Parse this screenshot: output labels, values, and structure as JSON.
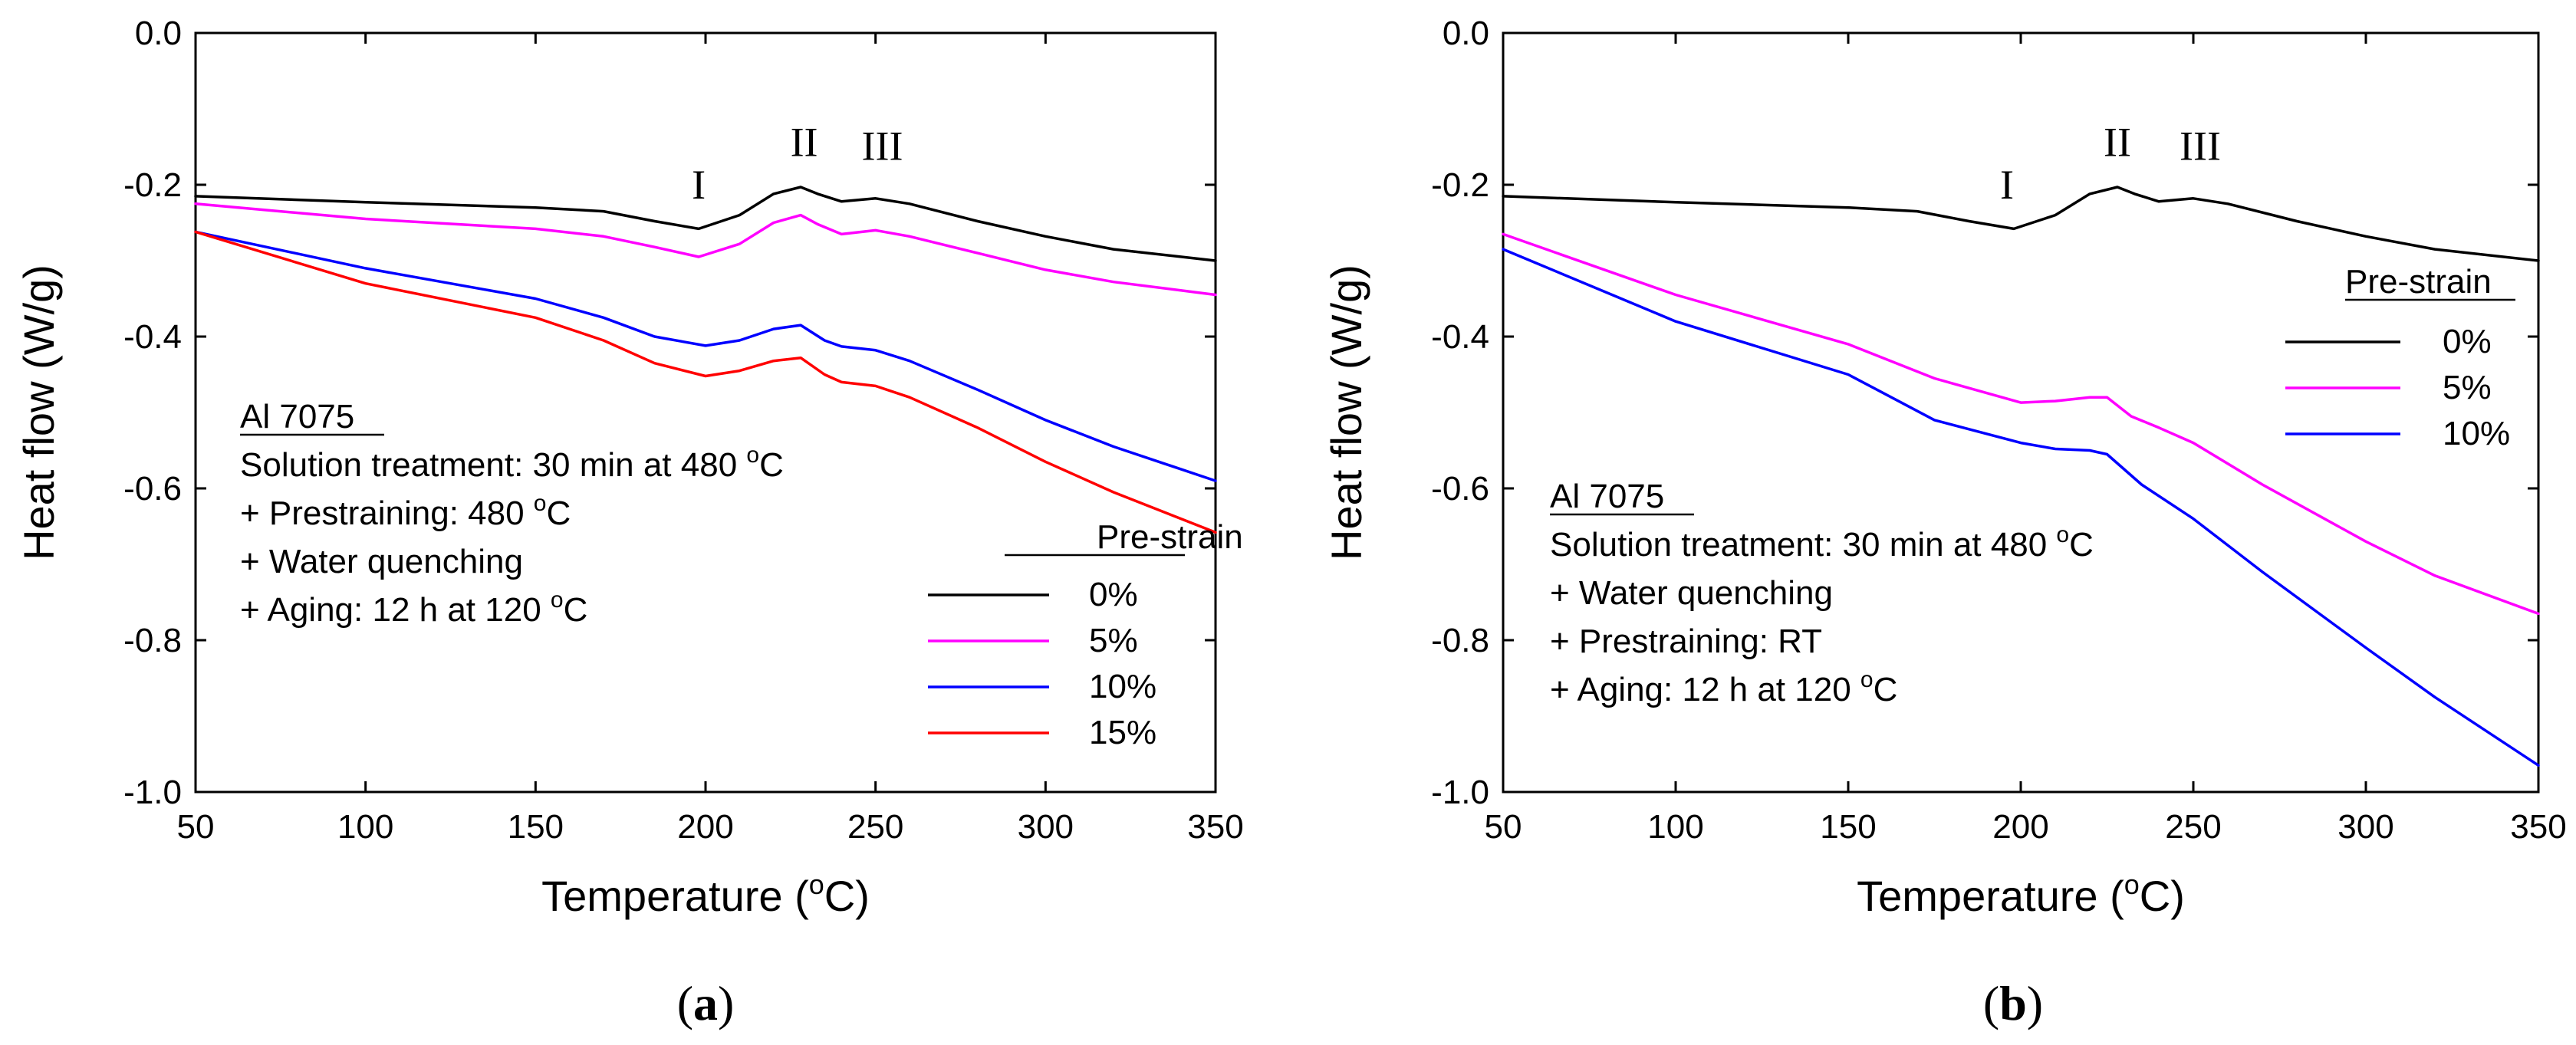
{
  "chart_data": [
    {
      "type": "line",
      "panel_label": "a",
      "xlabel": "Temperature (",
      "xlabel_sup": "o",
      "xlabel_end": "C)",
      "ylabel": "Heat flow (W/g)",
      "xlim": [
        50,
        350
      ],
      "ylim": [
        -1.0,
        0.0
      ],
      "xticks": [
        "50",
        "100",
        "150",
        "200",
        "250",
        "300",
        "350"
      ],
      "yticks": [
        "0.0",
        "-0.2",
        "-0.4",
        "-0.6",
        "-0.8",
        "-1.0"
      ],
      "grid": false,
      "peaks": [
        {
          "label": "I",
          "x": 198,
          "y": -0.218
        },
        {
          "label": "II",
          "x": 229,
          "y": -0.162
        },
        {
          "label": "III",
          "x": 252,
          "y": -0.167
        }
      ],
      "annotation": {
        "title": "Al 7075",
        "lines": [
          {
            "pre": "Solution treatment: 30 min at 480 ",
            "sup": "o",
            "post": "C"
          },
          {
            "pre": "+ Prestraining: 480 ",
            "sup": "o",
            "post": "C"
          },
          {
            "pre": "+ Water quenching",
            "sup": "",
            "post": ""
          },
          {
            "pre": "+ Aging: 12 h at 120 ",
            "sup": "o",
            "post": "C"
          }
        ]
      },
      "legend_title": "Pre-strain",
      "legend_position": "bottom-right",
      "series": [
        {
          "name": "0%",
          "color": "#000000",
          "x": [
            50,
            100,
            150,
            170,
            185,
            198,
            210,
            220,
            228,
            233,
            240,
            250,
            260,
            280,
            300,
            320,
            350
          ],
          "y": [
            -0.215,
            -0.223,
            -0.23,
            -0.235,
            -0.248,
            -0.258,
            -0.24,
            -0.212,
            -0.203,
            -0.212,
            -0.222,
            -0.218,
            -0.225,
            -0.248,
            -0.268,
            -0.285,
            -0.3
          ]
        },
        {
          "name": "5%",
          "color": "#ff00ff",
          "x": [
            50,
            100,
            150,
            170,
            185,
            198,
            210,
            220,
            228,
            233,
            240,
            250,
            260,
            280,
            300,
            320,
            350
          ],
          "y": [
            -0.225,
            -0.245,
            -0.258,
            -0.268,
            -0.282,
            -0.295,
            -0.278,
            -0.25,
            -0.24,
            -0.252,
            -0.265,
            -0.26,
            -0.268,
            -0.29,
            -0.312,
            -0.328,
            -0.345
          ]
        },
        {
          "name": "10%",
          "color": "#0000ff",
          "x": [
            50,
            100,
            150,
            170,
            185,
            200,
            210,
            220,
            228,
            235,
            240,
            250,
            260,
            280,
            300,
            320,
            350
          ],
          "y": [
            -0.262,
            -0.31,
            -0.35,
            -0.375,
            -0.4,
            -0.412,
            -0.405,
            -0.39,
            -0.385,
            -0.405,
            -0.413,
            -0.418,
            -0.432,
            -0.47,
            -0.51,
            -0.545,
            -0.59
          ]
        },
        {
          "name": "15%",
          "color": "#ff0000",
          "x": [
            50,
            100,
            150,
            170,
            185,
            200,
            210,
            220,
            228,
            235,
            240,
            250,
            260,
            280,
            300,
            320,
            350
          ],
          "y": [
            -0.262,
            -0.33,
            -0.375,
            -0.405,
            -0.435,
            -0.452,
            -0.445,
            -0.432,
            -0.428,
            -0.45,
            -0.46,
            -0.465,
            -0.48,
            -0.52,
            -0.565,
            -0.605,
            -0.658
          ]
        }
      ]
    },
    {
      "type": "line",
      "panel_label": "b",
      "xlabel": "Temperature (",
      "xlabel_sup": "o",
      "xlabel_end": "C)",
      "ylabel": "Heat flow (W/g)",
      "xlim": [
        50,
        350
      ],
      "ylim": [
        -1.0,
        0.0
      ],
      "xticks": [
        "50",
        "100",
        "150",
        "200",
        "250",
        "300",
        "350"
      ],
      "yticks": [
        "0.0",
        "-0.2",
        "-0.4",
        "-0.6",
        "-0.8",
        "-1.0"
      ],
      "grid": false,
      "peaks": [
        {
          "label": "I",
          "x": 196,
          "y": -0.218
        },
        {
          "label": "II",
          "x": 228,
          "y": -0.162
        },
        {
          "label": "III",
          "x": 252,
          "y": -0.167
        }
      ],
      "annotation": {
        "title": "Al 7075",
        "lines": [
          {
            "pre": "Solution treatment: 30 min at 480 ",
            "sup": "o",
            "post": "C"
          },
          {
            "pre": "+ Water quenching",
            "sup": "",
            "post": ""
          },
          {
            "pre": "+ Prestraining: RT",
            "sup": "",
            "post": ""
          },
          {
            "pre": "+ Aging: 12 h at 120 ",
            "sup": "o",
            "post": "C"
          }
        ]
      },
      "legend_title": "Pre-strain",
      "legend_position": "top-right",
      "series": [
        {
          "name": "0%",
          "color": "#000000",
          "x": [
            50,
            100,
            150,
            170,
            185,
            198,
            210,
            220,
            228,
            233,
            240,
            250,
            260,
            280,
            300,
            320,
            350
          ],
          "y": [
            -0.215,
            -0.223,
            -0.23,
            -0.235,
            -0.248,
            -0.258,
            -0.24,
            -0.212,
            -0.203,
            -0.212,
            -0.222,
            -0.218,
            -0.225,
            -0.248,
            -0.268,
            -0.285,
            -0.3
          ]
        },
        {
          "name": "5%",
          "color": "#ff00ff",
          "x": [
            50,
            100,
            150,
            175,
            200,
            210,
            220,
            225,
            232,
            240,
            250,
            270,
            300,
            320,
            350
          ],
          "y": [
            -0.265,
            -0.345,
            -0.41,
            -0.455,
            -0.487,
            -0.485,
            -0.48,
            -0.48,
            -0.505,
            -0.52,
            -0.54,
            -0.595,
            -0.67,
            -0.715,
            -0.765
          ]
        },
        {
          "name": "10%",
          "color": "#0000ff",
          "x": [
            50,
            100,
            150,
            175,
            200,
            210,
            220,
            225,
            235,
            250,
            270,
            300,
            320,
            350
          ],
          "y": [
            -0.285,
            -0.38,
            -0.45,
            -0.51,
            -0.54,
            -0.548,
            -0.55,
            -0.555,
            -0.595,
            -0.64,
            -0.71,
            -0.81,
            -0.875,
            -0.965
          ]
        }
      ]
    }
  ]
}
